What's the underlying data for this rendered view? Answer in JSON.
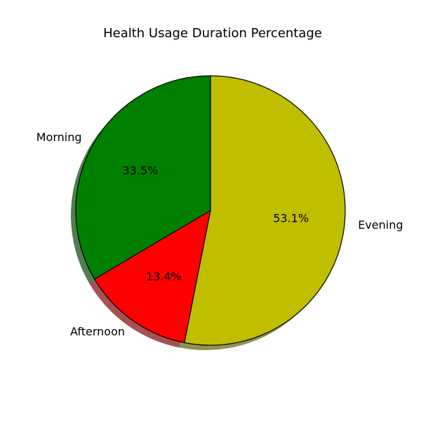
{
  "chart_data": {
    "type": "pie",
    "title": "Health Usage Duration Percentage",
    "slices": [
      {
        "label": "Morning",
        "value": 33.5,
        "pct_label": "33.5%",
        "color": "#008000"
      },
      {
        "label": "Afternoon",
        "value": 13.4,
        "pct_label": "13.4%",
        "color": "#ff0000"
      },
      {
        "label": "Evening",
        "value": 53.1,
        "pct_label": "53.1%",
        "color": "#bfbf00"
      }
    ],
    "start_angle_deg": 90,
    "direction": "counterclockwise",
    "shadow": true,
    "edge_color": "#000000",
    "legend": "none"
  }
}
